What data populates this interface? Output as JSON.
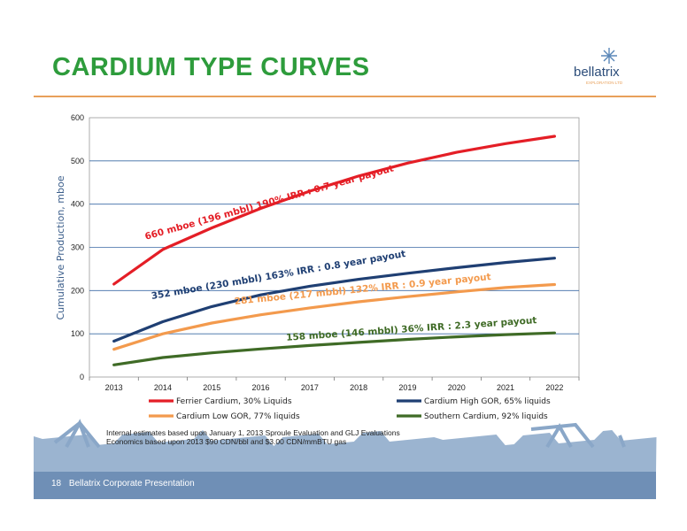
{
  "slide": {
    "title": "CARDIUM TYPE CURVES",
    "logo_text": "bellatrix",
    "logo_sub": "EXPLORATION LTD",
    "page_number": "18",
    "footer": "Bellatrix Corporate Presentation",
    "notes": [
      "Internal estimates based upon January 1, 2013 Sproule Evaluation and GLJ Evaluations",
      "Economics based upon 2013 $90 CDN/bbl and $3.00 CDN/mmBTU gas"
    ],
    "colors": {
      "title": "#2e9c3c",
      "accent": "#e8a05a",
      "footer": "#6f8fb6"
    }
  },
  "chart_data": {
    "type": "line",
    "x": [
      2013,
      2014,
      2015,
      2016,
      2017,
      2018,
      2019,
      2020,
      2021,
      2022
    ],
    "ylabel": "Cumulative Production, mboe",
    "ylim": [
      0,
      600
    ],
    "yticks": [
      0,
      100,
      200,
      300,
      400,
      500,
      600
    ],
    "grid": true,
    "legend_position": "bottom",
    "series": [
      {
        "name": "Ferrier Cardium, 30% Liquids",
        "color": "#e41e26",
        "values": [
          215,
          295,
          345,
          390,
          430,
          465,
          495,
          520,
          540,
          557
        ],
        "annotation": "660 mboe (196 mbbl) 190% IRR : 0.7 year payout"
      },
      {
        "name": "Cardium High GOR, 65% liquids",
        "color": "#1f3f73",
        "values": [
          83,
          128,
          163,
          190,
          210,
          226,
          240,
          253,
          265,
          275
        ],
        "annotation": "352 mboe (230 mbbl) 163% IRR : 0.8 year payout"
      },
      {
        "name": "Cardium Low GOR, 77% liquids",
        "color": "#f39a4d",
        "values": [
          64,
          100,
          125,
          144,
          160,
          174,
          186,
          197,
          207,
          214
        ],
        "annotation": "281 mboe (217 mbbl) 132% IRR : 0.9 year payout"
      },
      {
        "name": "Southern Cardium, 92% liquids",
        "color": "#3f6b26",
        "values": [
          28,
          45,
          56,
          65,
          73,
          80,
          87,
          93,
          98,
          102
        ],
        "annotation": "158 mboe (146 mbbl) 36% IRR : 2.3 year payout"
      }
    ]
  }
}
